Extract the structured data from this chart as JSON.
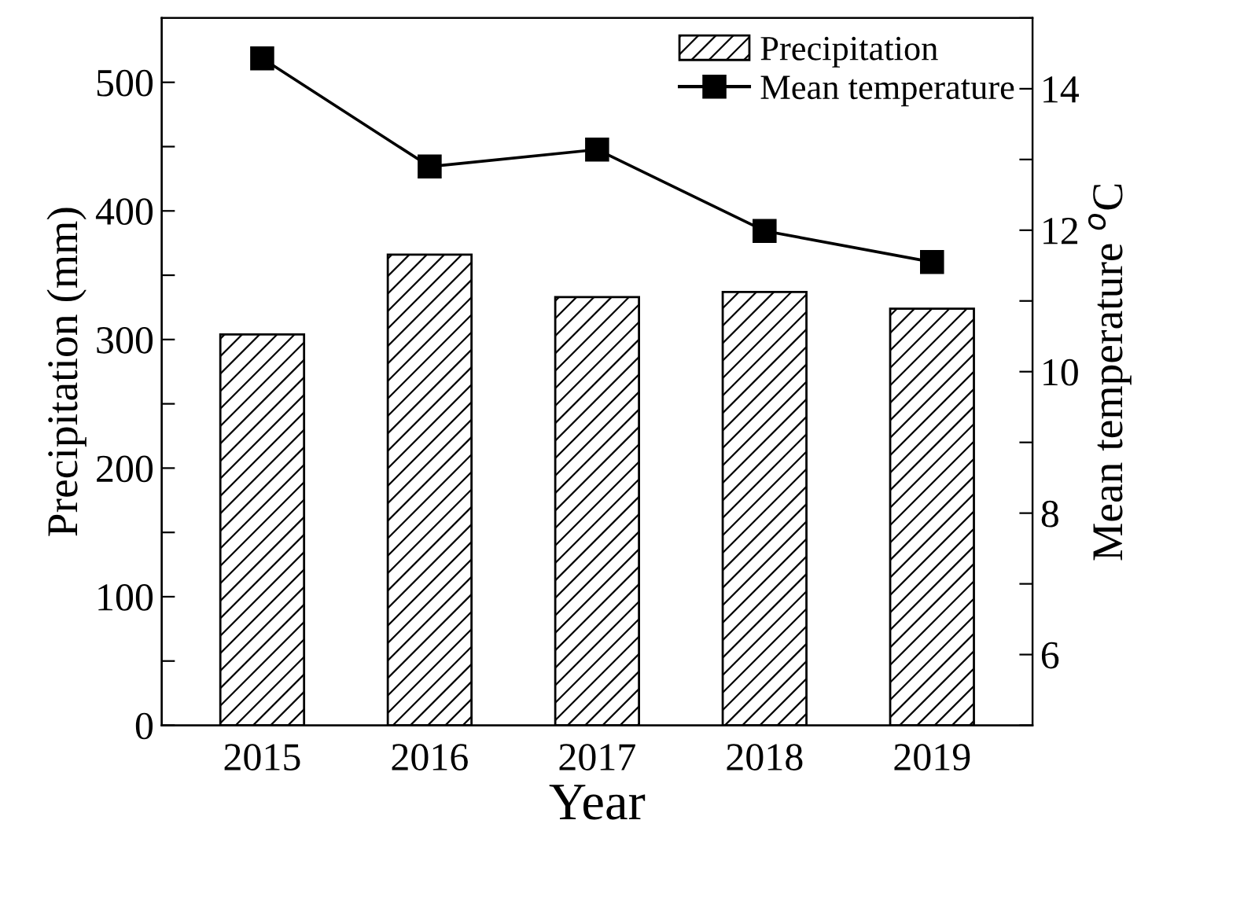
{
  "chart_data": {
    "type": "bar",
    "xlabel": "Year",
    "ylabel": "Precipitation (mm)",
    "y2label": "Mean temperature $^{o}$C",
    "categories": [
      "2015",
      "2016",
      "2017",
      "2018",
      "2019"
    ],
    "series": [
      {
        "name": "Precipitation",
        "color": "#000000",
        "values": [
          304,
          366,
          333,
          337,
          324
        ]
      },
      {
        "name": "Mean temperature",
        "type": "line",
        "axis": "y2",
        "color": "#000000",
        "marker": "square",
        "values": [
          14.43,
          12.9,
          13.14,
          11.99,
          11.55
        ]
      }
    ],
    "ylim": [
      0,
      550
    ],
    "yticks": [
      0,
      {
        "value": 50,
        "label": null
      },
      100,
      {
        "value": 150,
        "label": null
      },
      200,
      {
        "value": 250,
        "label": null
      },
      300,
      {
        "value": 350,
        "label": null
      },
      400,
      {
        "value": 450,
        "label": null
      },
      500
    ],
    "y2lim": [
      5,
      15
    ],
    "y2ticks": [
      {
        "value": 5,
        "label": null
      },
      6,
      {
        "value": 7,
        "label": null
      },
      8,
      {
        "value": 9,
        "label": null
      },
      10,
      {
        "value": 11,
        "label": null
      },
      12,
      {
        "value": 13,
        "label": null
      },
      14,
      {
        "value": 15,
        "label": null
      }
    ],
    "legend": "top right",
    "grid": false
  }
}
